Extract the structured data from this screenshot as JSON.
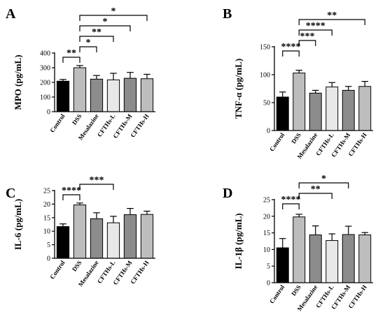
{
  "chart_data": [
    {
      "panel": "A",
      "type": "bar",
      "ylabel": "MPO (pg/mL)",
      "ylim": [
        0,
        400
      ],
      "yticks": [
        0,
        100,
        200,
        300,
        400
      ],
      "categories": [
        "Control",
        "DSS",
        "Mesalazine",
        "CFTHs-L",
        "CFTHs-M",
        "CFTHs-H"
      ],
      "values": [
        208,
        300,
        222,
        217,
        228,
        225
      ],
      "errors": [
        12,
        15,
        25,
        45,
        40,
        30
      ],
      "colors": [
        "#000000",
        "#bdbdbd",
        "#8c8c8c",
        "#e8e8e8",
        "#8c8c8c",
        "#bdbdbd"
      ],
      "significance": [
        {
          "from": 0,
          "to": 1,
          "label": "**"
        },
        {
          "from": 1,
          "to": 2,
          "label": "*"
        },
        {
          "from": 1,
          "to": 3,
          "label": "**"
        },
        {
          "from": 1,
          "to": 4,
          "label": "*"
        },
        {
          "from": 1,
          "to": 5,
          "label": "*"
        }
      ]
    },
    {
      "panel": "B",
      "type": "bar",
      "ylabel": "TNF-α (pg/mL)",
      "ylim": [
        0,
        150
      ],
      "yticks": [
        0,
        50,
        100,
        150
      ],
      "categories": [
        "Control",
        "DSS",
        "Mesalazine",
        "CFTHs-L",
        "CFTHs-M",
        "CFTHs-H"
      ],
      "values": [
        60,
        103,
        67,
        78,
        72,
        79
      ],
      "errors": [
        9,
        5,
        5,
        8,
        7,
        9
      ],
      "colors": [
        "#000000",
        "#bdbdbd",
        "#8c8c8c",
        "#e8e8e8",
        "#8c8c8c",
        "#bdbdbd"
      ],
      "significance": [
        {
          "from": 0,
          "to": 1,
          "label": "****"
        },
        {
          "from": 1,
          "to": 2,
          "label": "***"
        },
        {
          "from": 1,
          "to": 3,
          "label": "****"
        },
        {
          "from": 1,
          "to": 5,
          "label": "**"
        }
      ]
    },
    {
      "panel": "C",
      "type": "bar",
      "ylabel": "IL-6 (pg/mL)",
      "ylim": [
        0,
        25
      ],
      "yticks": [
        0,
        5,
        10,
        15,
        20,
        25
      ],
      "categories": [
        "Control",
        "DSS",
        "Mesalazine",
        "CFTHs-L",
        "CFTHs-M",
        "CFTHs-H"
      ],
      "values": [
        11.7,
        19.7,
        14.6,
        13.1,
        16.1,
        16.2
      ],
      "errors": [
        1.0,
        0.7,
        2.2,
        2.4,
        2.3,
        1.2
      ],
      "colors": [
        "#000000",
        "#bdbdbd",
        "#8c8c8c",
        "#e8e8e8",
        "#8c8c8c",
        "#bdbdbd"
      ],
      "significance": [
        {
          "from": 0,
          "to": 1,
          "label": "****"
        },
        {
          "from": 1,
          "to": 3,
          "label": "***"
        }
      ]
    },
    {
      "panel": "D",
      "type": "bar",
      "ylabel": "IL-1β (pg/mL)",
      "ylim": [
        0,
        25
      ],
      "yticks": [
        0,
        5,
        10,
        15,
        20,
        25
      ],
      "categories": [
        "Control",
        "DSS",
        "Mesalazine",
        "CFTHs-L",
        "CFTHs-M",
        "CFTHs-H"
      ],
      "values": [
        10.5,
        19.8,
        14.4,
        12.7,
        14.5,
        14.4
      ],
      "errors": [
        2.8,
        0.8,
        2.7,
        2.0,
        2.5,
        0.7
      ],
      "colors": [
        "#000000",
        "#bdbdbd",
        "#8c8c8c",
        "#e8e8e8",
        "#8c8c8c",
        "#bdbdbd"
      ],
      "significance": [
        {
          "from": 0,
          "to": 1,
          "label": "****"
        },
        {
          "from": 1,
          "to": 3,
          "label": "**"
        },
        {
          "from": 1,
          "to": 4,
          "label": "*"
        }
      ]
    }
  ]
}
